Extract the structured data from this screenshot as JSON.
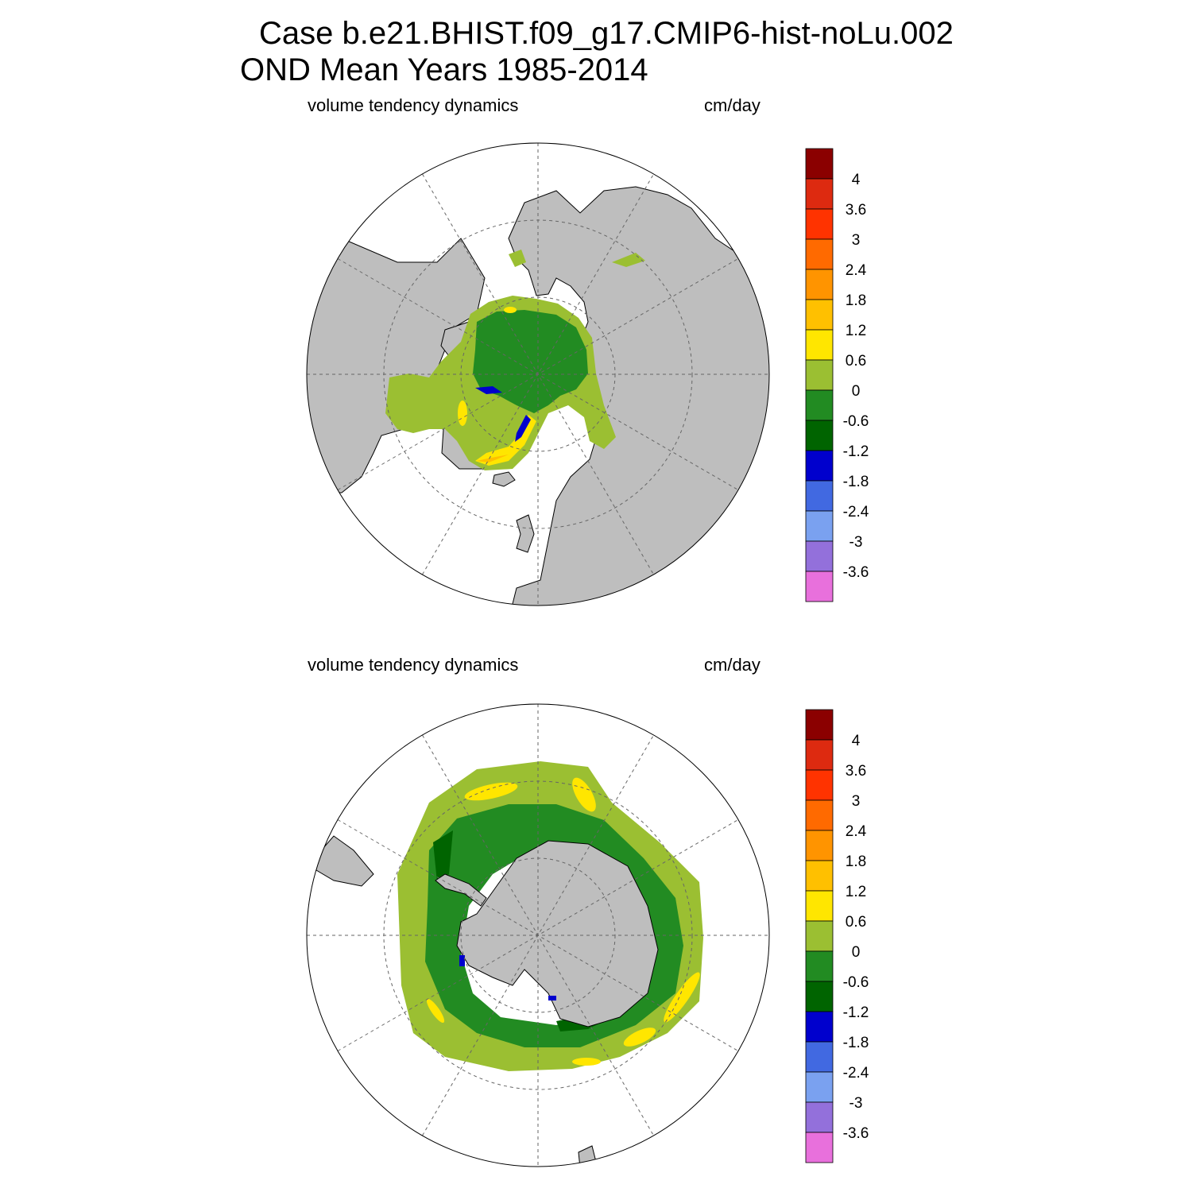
{
  "title": {
    "line1": "Case b.e21.BHIST.f09_g17.CMIP6-hist-noLu.002",
    "line2": "OND Mean   Years 1985-2014"
  },
  "panels": [
    {
      "id": "arctic",
      "variable": "volume tendency dynamics",
      "units": "cm/day",
      "hemisphere": "north"
    },
    {
      "id": "antarctic",
      "variable": "volume tendency dynamics",
      "units": "cm/day",
      "hemisphere": "south"
    }
  ],
  "colorbar": {
    "labels": [
      "4",
      "3.6",
      "3",
      "2.4",
      "1.8",
      "1.2",
      "0.6",
      "0",
      "-0.6",
      "-1.2",
      "-1.8",
      "-2.4",
      "-3",
      "-3.6"
    ],
    "colors": [
      "#8b0000",
      "#dd2a10",
      "#ff3300",
      "#ff6a00",
      "#ff9400",
      "#ffc000",
      "#ffe600",
      "#9bbf32",
      "#228b22",
      "#006400",
      "#0000cd",
      "#4169e1",
      "#7aa1f0",
      "#9370db",
      "#e870dc"
    ]
  },
  "map_style": {
    "land": "#bebebe",
    "ocean": "#ffffff",
    "border": "#000000",
    "grid": "#666666"
  }
}
